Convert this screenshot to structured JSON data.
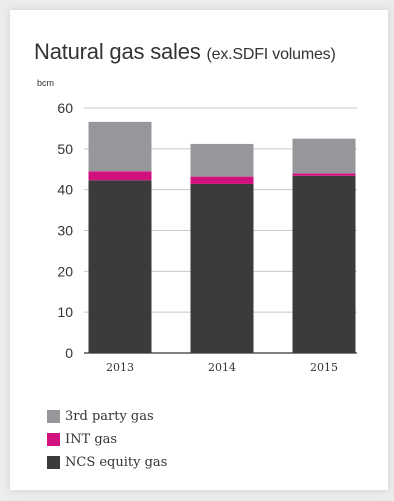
{
  "chart_data": {
    "type": "bar",
    "stacked": true,
    "title": "Natural gas sales",
    "subtitle": "(ex.SDFI volumes)",
    "ylabel": "bcm",
    "ylim": [
      0,
      60
    ],
    "yticks": [
      0,
      10,
      20,
      30,
      40,
      50,
      60
    ],
    "grid": true,
    "legend_position": "bottom",
    "categories": [
      "2013",
      "2014",
      "2015"
    ],
    "series": [
      {
        "name": "NCS equity gas",
        "color": "#3b3b3e",
        "values": [
          42.3,
          41.4,
          43.4
        ]
      },
      {
        "name": "INT gas",
        "color": "#d1127e",
        "values": [
          2.2,
          1.8,
          0.6
        ]
      },
      {
        "name": "3rd party gas",
        "color": "#97969b",
        "values": [
          12.1,
          8.0,
          8.5
        ]
      }
    ],
    "legend_order": [
      "3rd party gas",
      "INT gas",
      "NCS equity gas"
    ]
  }
}
